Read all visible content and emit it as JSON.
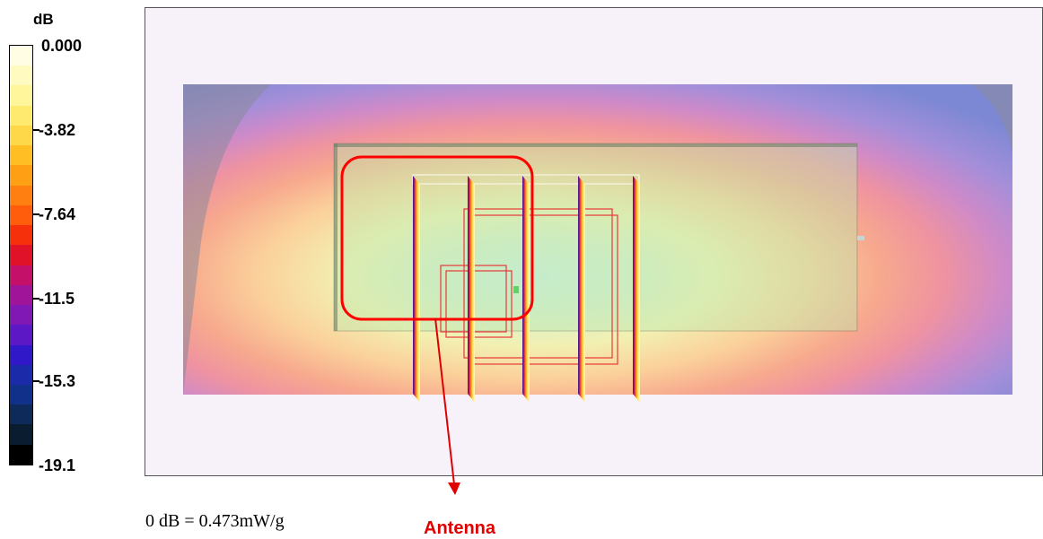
{
  "colorbar": {
    "unit": "dB",
    "ticks": [
      "0.000",
      "-3.82",
      "-7.64",
      "-11.5",
      "-15.3",
      "-19.1"
    ],
    "colors": [
      "#fffde3",
      "#fffac0",
      "#fff59a",
      "#ffea70",
      "#ffd84a",
      "#ffbf24",
      "#ffa014",
      "#ff8010",
      "#ff5c0c",
      "#f5300a",
      "#e0122a",
      "#c5106a",
      "#a0149a",
      "#8018b5",
      "#5c18c5",
      "#3018c8",
      "#1a2aa8",
      "#10308a",
      "#0e2a5a",
      "#0a1c30",
      "#000000"
    ]
  },
  "plot": {
    "reference": "0 dB = 0.473mW/g",
    "callout": "Antenna"
  }
}
